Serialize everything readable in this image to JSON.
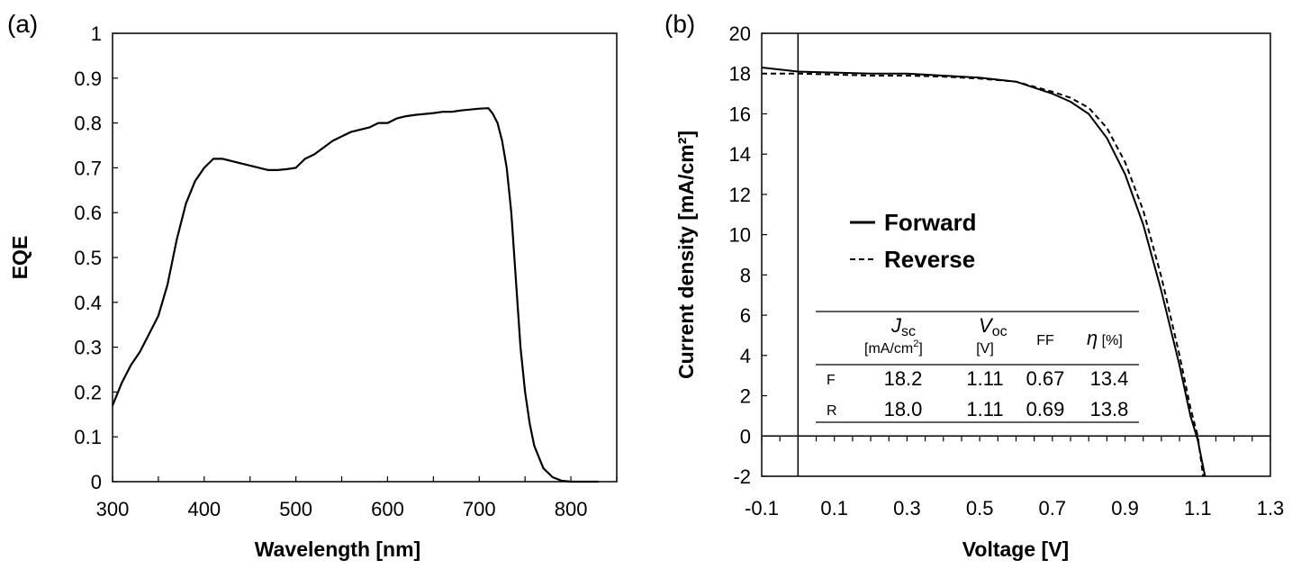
{
  "chart_data": [
    {
      "type": "line",
      "panel_label": "(a)",
      "xlabel": "Wavelength [nm]",
      "ylabel": "EQE",
      "xlim": [
        300,
        850
      ],
      "ylim": [
        0,
        1
      ],
      "xticks": [
        "300",
        "400",
        "500",
        "600",
        "700",
        "800"
      ],
      "yticks": [
        "0",
        "0.1",
        "0.2",
        "0.3",
        "0.4",
        "0.5",
        "0.6",
        "0.7",
        "0.8",
        "0.9",
        "1"
      ],
      "grid": false,
      "series": [
        {
          "style": "solid",
          "x": [
            300,
            310,
            320,
            330,
            340,
            350,
            360,
            370,
            380,
            390,
            400,
            410,
            420,
            430,
            440,
            450,
            460,
            470,
            480,
            490,
            500,
            510,
            520,
            530,
            540,
            550,
            560,
            570,
            580,
            590,
            600,
            610,
            620,
            630,
            640,
            650,
            660,
            670,
            680,
            690,
            700,
            710,
            715,
            720,
            725,
            730,
            735,
            740,
            745,
            750,
            755,
            760,
            770,
            780,
            790,
            800,
            810,
            830
          ],
          "y": [
            0.17,
            0.22,
            0.26,
            0.29,
            0.33,
            0.37,
            0.44,
            0.54,
            0.62,
            0.67,
            0.7,
            0.72,
            0.72,
            0.715,
            0.71,
            0.705,
            0.7,
            0.695,
            0.695,
            0.697,
            0.7,
            0.72,
            0.73,
            0.745,
            0.76,
            0.77,
            0.78,
            0.785,
            0.79,
            0.8,
            0.8,
            0.81,
            0.815,
            0.818,
            0.82,
            0.822,
            0.825,
            0.825,
            0.828,
            0.83,
            0.832,
            0.833,
            0.82,
            0.8,
            0.76,
            0.7,
            0.6,
            0.45,
            0.3,
            0.2,
            0.13,
            0.08,
            0.03,
            0.01,
            0.002,
            0.0,
            0.0,
            0.0
          ]
        }
      ]
    },
    {
      "type": "line",
      "panel_label": "(b)",
      "xlabel": "Voltage [V]",
      "ylabel": "Current density [mA/cm²]",
      "xlim": [
        -0.1,
        1.3
      ],
      "ylim": [
        -2,
        20
      ],
      "xticks": [
        "-0.1",
        "0.1",
        "0.3",
        "0.5",
        "0.7",
        "0.9",
        "1.1",
        "1.3"
      ],
      "yticks": [
        "-2",
        "0",
        "2",
        "4",
        "6",
        "8",
        "10",
        "12",
        "14",
        "16",
        "18",
        "20"
      ],
      "grid": false,
      "legend_position": "center-left",
      "series": [
        {
          "name": "Forward",
          "style": "solid",
          "x": [
            -0.1,
            0.0,
            0.1,
            0.2,
            0.3,
            0.4,
            0.5,
            0.6,
            0.65,
            0.7,
            0.75,
            0.8,
            0.85,
            0.9,
            0.95,
            1.0,
            1.05,
            1.08,
            1.1,
            1.12
          ],
          "y": [
            18.3,
            18.1,
            18.05,
            18.0,
            18.0,
            17.9,
            17.8,
            17.6,
            17.3,
            17.0,
            16.6,
            16.0,
            14.8,
            13.0,
            10.5,
            7.2,
            3.5,
            1.0,
            -0.2,
            -2.0
          ]
        },
        {
          "name": "Reverse",
          "style": "dashed",
          "x": [
            -0.1,
            0.0,
            0.1,
            0.2,
            0.3,
            0.4,
            0.5,
            0.6,
            0.65,
            0.7,
            0.75,
            0.8,
            0.85,
            0.9,
            0.95,
            1.0,
            1.05,
            1.08,
            1.1,
            1.115
          ],
          "y": [
            18.0,
            18.0,
            17.95,
            17.9,
            17.9,
            17.85,
            17.75,
            17.6,
            17.35,
            17.1,
            16.8,
            16.3,
            15.3,
            13.6,
            11.2,
            7.9,
            4.0,
            1.4,
            0.0,
            -2.0
          ]
        }
      ],
      "table": {
        "headers": [
          {
            "main": "J",
            "sub": "sc",
            "unit": "[mA/cm",
            "unit_sup": "2",
            "unit_end": "]"
          },
          {
            "main": "V",
            "sub": "oc",
            "unit": "[V]"
          },
          {
            "main": "FF"
          },
          {
            "main": "η",
            "unit_inline": " [%]"
          }
        ],
        "rows": [
          {
            "label": "F",
            "values": [
              "18.2",
              "1.11",
              "0.67",
              "13.4"
            ]
          },
          {
            "label": "R",
            "values": [
              "18.0",
              "1.11",
              "0.69",
              "13.8"
            ]
          }
        ]
      }
    }
  ]
}
